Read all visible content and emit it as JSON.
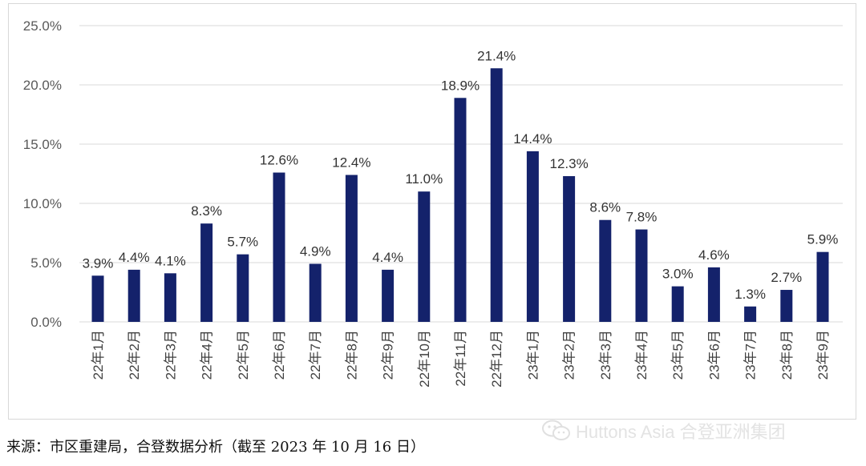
{
  "chart_data": {
    "type": "bar",
    "categories": [
      "22年1月",
      "22年2月",
      "22年3月",
      "22年4月",
      "22年5月",
      "22年6月",
      "22年7月",
      "22年8月",
      "22年9月",
      "22年10月",
      "22年11月",
      "22年12月",
      "23年1月",
      "23年2月",
      "23年3月",
      "23年4月",
      "23年5月",
      "23年6月",
      "23年7月",
      "23年8月",
      "23年9月"
    ],
    "values": [
      3.9,
      4.4,
      4.1,
      8.3,
      5.7,
      12.6,
      4.9,
      12.4,
      4.4,
      11.0,
      18.9,
      21.4,
      14.4,
      12.3,
      8.6,
      7.8,
      3.0,
      4.6,
      1.3,
      2.7,
      5.9
    ],
    "data_labels": [
      "3.9%",
      "4.4%",
      "4.1%",
      "8.3%",
      "5.7%",
      "12.6%",
      "4.9%",
      "12.4%",
      "4.4%",
      "11.0%",
      "18.9%",
      "21.4%",
      "14.4%",
      "12.3%",
      "8.6%",
      "7.8%",
      "3.0%",
      "4.6%",
      "1.3%",
      "2.7%",
      "5.9%"
    ],
    "y_ticks": [
      0,
      5,
      10,
      15,
      20,
      25
    ],
    "y_tick_labels": [
      "0.0%",
      "5.0%",
      "10.0%",
      "15.0%",
      "20.0%",
      "25.0%"
    ],
    "ylim": [
      0,
      25
    ],
    "grid": true,
    "legend": "none",
    "bar_color": "#14226b"
  },
  "source_note": "来源：市区重建局，合登数据分析（截至 2023 年 10 月 16 日）",
  "watermark": {
    "text": "Huttons Asia 合登亚洲集团",
    "icon": "wechat-icon"
  }
}
